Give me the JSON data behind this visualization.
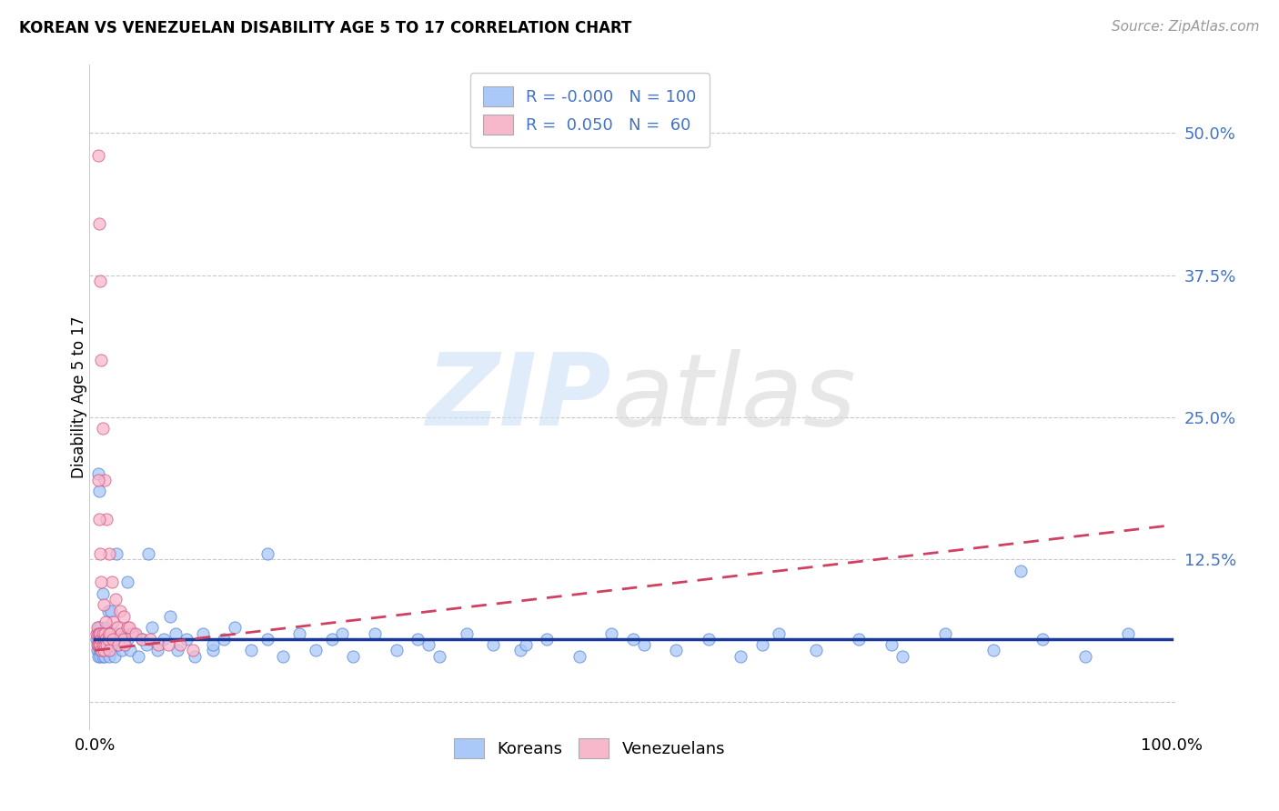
{
  "title": "KOREAN VS VENEZUELAN DISABILITY AGE 5 TO 17 CORRELATION CHART",
  "source": "Source: ZipAtlas.com",
  "ylabel": "Disability Age 5 to 17",
  "xlim": [
    -0.005,
    1.005
  ],
  "ylim": [
    -0.025,
    0.56
  ],
  "ytick_vals": [
    0.0,
    0.125,
    0.25,
    0.375,
    0.5
  ],
  "ytick_labels": [
    "",
    "12.5%",
    "25.0%",
    "37.5%",
    "50.0%"
  ],
  "xtick_vals": [
    0.0,
    1.0
  ],
  "xtick_labels": [
    "0.0%",
    "100.0%"
  ],
  "korean_color": "#aac8f8",
  "korean_edge": "#5080d0",
  "venezuelan_color": "#f8b8cc",
  "venezuelan_edge": "#d05080",
  "trend_korean_color": "#1a3a9a",
  "trend_venezuelan_color": "#d04060",
  "legend_r_korean": "-0.000",
  "legend_n_korean": "100",
  "legend_r_venezuelan": "0.050",
  "legend_n_venezuelan": "60",
  "legend_color": "#4472c4",
  "ytick_color": "#4472c4",
  "korean_x": [
    0.001,
    0.002,
    0.002,
    0.003,
    0.003,
    0.003,
    0.004,
    0.004,
    0.004,
    0.005,
    0.005,
    0.005,
    0.006,
    0.006,
    0.006,
    0.007,
    0.007,
    0.008,
    0.008,
    0.009,
    0.009,
    0.01,
    0.01,
    0.011,
    0.012,
    0.013,
    0.014,
    0.015,
    0.016,
    0.017,
    0.018,
    0.02,
    0.022,
    0.025,
    0.028,
    0.03,
    0.033,
    0.036,
    0.04,
    0.044,
    0.048,
    0.053,
    0.058,
    0.064,
    0.07,
    0.077,
    0.085,
    0.093,
    0.1,
    0.11,
    0.12,
    0.13,
    0.145,
    0.16,
    0.175,
    0.19,
    0.205,
    0.22,
    0.24,
    0.26,
    0.28,
    0.3,
    0.32,
    0.345,
    0.37,
    0.395,
    0.42,
    0.45,
    0.48,
    0.51,
    0.54,
    0.57,
    0.6,
    0.635,
    0.67,
    0.71,
    0.75,
    0.79,
    0.835,
    0.88,
    0.92,
    0.96,
    0.003,
    0.007,
    0.012,
    0.02,
    0.03,
    0.05,
    0.075,
    0.11,
    0.16,
    0.23,
    0.31,
    0.4,
    0.5,
    0.62,
    0.74,
    0.86,
    0.004,
    0.015
  ],
  "korean_y": [
    0.055,
    0.06,
    0.045,
    0.055,
    0.065,
    0.04,
    0.05,
    0.06,
    0.045,
    0.055,
    0.04,
    0.065,
    0.05,
    0.06,
    0.045,
    0.055,
    0.04,
    0.06,
    0.045,
    0.055,
    0.04,
    0.05,
    0.065,
    0.045,
    0.055,
    0.04,
    0.06,
    0.05,
    0.045,
    0.055,
    0.04,
    0.06,
    0.05,
    0.045,
    0.06,
    0.055,
    0.045,
    0.06,
    0.04,
    0.055,
    0.05,
    0.065,
    0.045,
    0.055,
    0.075,
    0.045,
    0.055,
    0.04,
    0.06,
    0.045,
    0.055,
    0.065,
    0.045,
    0.055,
    0.04,
    0.06,
    0.045,
    0.055,
    0.04,
    0.06,
    0.045,
    0.055,
    0.04,
    0.06,
    0.05,
    0.045,
    0.055,
    0.04,
    0.06,
    0.05,
    0.045,
    0.055,
    0.04,
    0.06,
    0.045,
    0.055,
    0.04,
    0.06,
    0.045,
    0.055,
    0.04,
    0.06,
    0.2,
    0.095,
    0.08,
    0.13,
    0.105,
    0.13,
    0.06,
    0.05,
    0.13,
    0.06,
    0.05,
    0.05,
    0.055,
    0.05,
    0.05,
    0.115,
    0.185,
    0.08
  ],
  "venezuelan_x": [
    0.001,
    0.002,
    0.002,
    0.003,
    0.003,
    0.004,
    0.004,
    0.005,
    0.005,
    0.006,
    0.006,
    0.007,
    0.007,
    0.008,
    0.008,
    0.009,
    0.009,
    0.01,
    0.011,
    0.012,
    0.013,
    0.014,
    0.015,
    0.017,
    0.019,
    0.021,
    0.024,
    0.027,
    0.03,
    0.034,
    0.003,
    0.004,
    0.005,
    0.006,
    0.007,
    0.009,
    0.011,
    0.013,
    0.016,
    0.019,
    0.023,
    0.027,
    0.032,
    0.038,
    0.044,
    0.051,
    0.059,
    0.068,
    0.079,
    0.091,
    0.003,
    0.004,
    0.005,
    0.006,
    0.008,
    0.01,
    0.013,
    0.017,
    0.022,
    0.028
  ],
  "venezuelan_y": [
    0.06,
    0.065,
    0.05,
    0.06,
    0.05,
    0.06,
    0.05,
    0.06,
    0.05,
    0.055,
    0.045,
    0.06,
    0.05,
    0.055,
    0.045,
    0.06,
    0.05,
    0.055,
    0.05,
    0.055,
    0.045,
    0.06,
    0.06,
    0.07,
    0.055,
    0.065,
    0.06,
    0.055,
    0.065,
    0.06,
    0.48,
    0.42,
    0.37,
    0.3,
    0.24,
    0.195,
    0.16,
    0.13,
    0.105,
    0.09,
    0.08,
    0.075,
    0.065,
    0.06,
    0.055,
    0.055,
    0.05,
    0.05,
    0.05,
    0.045,
    0.195,
    0.16,
    0.13,
    0.105,
    0.085,
    0.07,
    0.06,
    0.055,
    0.05,
    0.05
  ],
  "korean_trend_x": [
    0.0,
    1.0
  ],
  "korean_trend_y": [
    0.055,
    0.055
  ],
  "venezuelan_trend_x": [
    0.0,
    1.0
  ],
  "venezuelan_trend_y": [
    0.045,
    0.155
  ]
}
